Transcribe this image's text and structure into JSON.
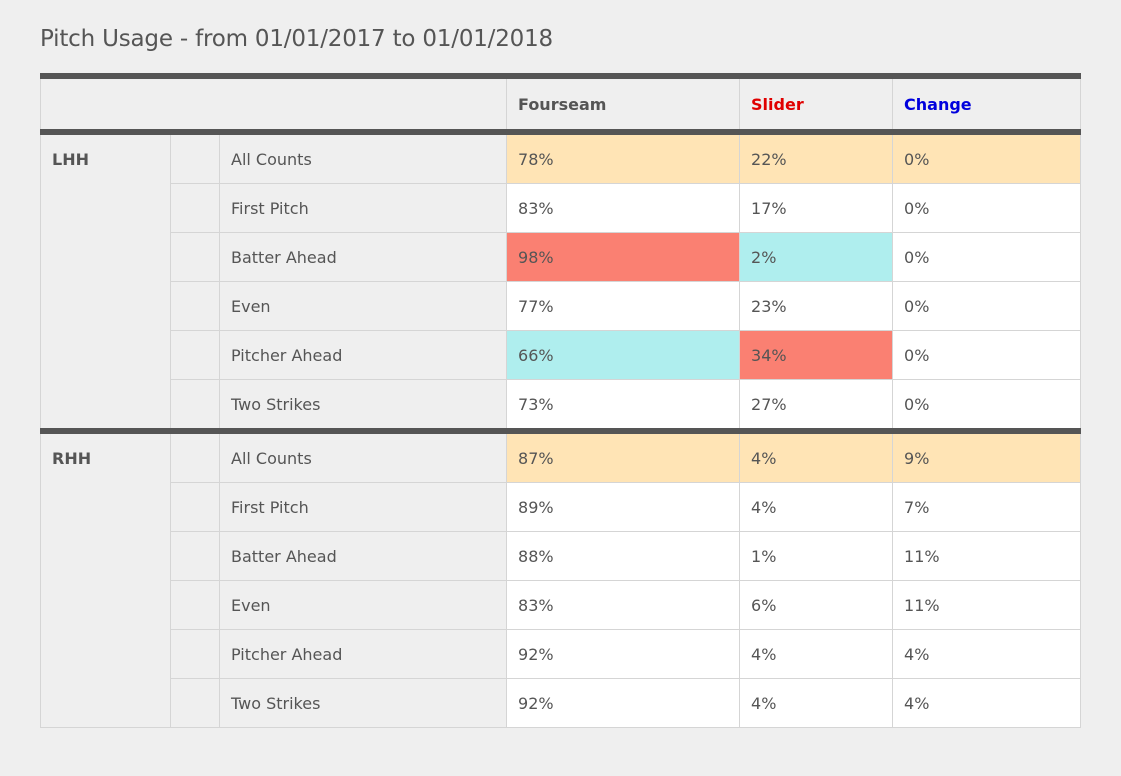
{
  "title": "Pitch Usage - from 01/01/2017 to 01/01/2018",
  "colors": {
    "Fourseam": "#555555",
    "Slider": "#e00000",
    "Change": "#0000dd",
    "all_counts_highlight": "#ffe4b5",
    "high_highlight": "#fa8072",
    "low_highlight": "#afeeee"
  },
  "chart_data": {
    "type": "table",
    "columns": [
      "Fourseam",
      "Slider",
      "Change"
    ],
    "groups": [
      {
        "name": "LHH",
        "rows": [
          {
            "label": "All Counts",
            "values": [
              "78%",
              "22%",
              "0%"
            ],
            "highlights": [
              "all",
              "all",
              "all"
            ]
          },
          {
            "label": "First Pitch",
            "values": [
              "83%",
              "17%",
              "0%"
            ],
            "highlights": [
              "",
              "",
              ""
            ]
          },
          {
            "label": "Batter Ahead",
            "values": [
              "98%",
              "2%",
              "0%"
            ],
            "highlights": [
              "high",
              "low",
              ""
            ]
          },
          {
            "label": "Even",
            "values": [
              "77%",
              "23%",
              "0%"
            ],
            "highlights": [
              "",
              "",
              ""
            ]
          },
          {
            "label": "Pitcher Ahead",
            "values": [
              "66%",
              "34%",
              "0%"
            ],
            "highlights": [
              "low",
              "high",
              ""
            ]
          },
          {
            "label": "Two Strikes",
            "values": [
              "73%",
              "27%",
              "0%"
            ],
            "highlights": [
              "",
              "",
              ""
            ]
          }
        ]
      },
      {
        "name": "RHH",
        "rows": [
          {
            "label": "All Counts",
            "values": [
              "87%",
              "4%",
              "9%"
            ],
            "highlights": [
              "all",
              "all",
              "all"
            ]
          },
          {
            "label": "First Pitch",
            "values": [
              "89%",
              "4%",
              "7%"
            ],
            "highlights": [
              "",
              "",
              ""
            ]
          },
          {
            "label": "Batter Ahead",
            "values": [
              "88%",
              "1%",
              "11%"
            ],
            "highlights": [
              "",
              "",
              ""
            ]
          },
          {
            "label": "Even",
            "values": [
              "83%",
              "6%",
              "11%"
            ],
            "highlights": [
              "",
              "",
              ""
            ]
          },
          {
            "label": "Pitcher Ahead",
            "values": [
              "92%",
              "4%",
              "4%"
            ],
            "highlights": [
              "",
              "",
              ""
            ]
          },
          {
            "label": "Two Strikes",
            "values": [
              "92%",
              "4%",
              "4%"
            ],
            "highlights": [
              "",
              "",
              ""
            ]
          }
        ]
      }
    ]
  }
}
